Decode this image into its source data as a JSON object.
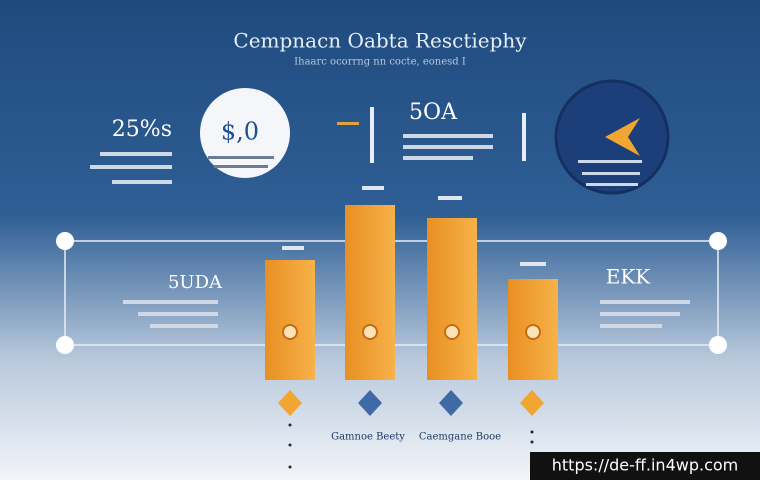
{
  "header": {
    "title": "Cempnacn Oabta Resctiephy",
    "subtitle": "Ihaarc ocorrng nn cocte, eonesd I"
  },
  "stats": {
    "left_top": "25%s",
    "circle": "$,0",
    "center_top": "5OA",
    "left_mid": "5UDA",
    "right_mid": "EKK"
  },
  "footer_labels": [
    "Gamnoe Beety",
    "Caemgane Booe"
  ],
  "watermark": "https://de-ff.in4wp.com"
}
